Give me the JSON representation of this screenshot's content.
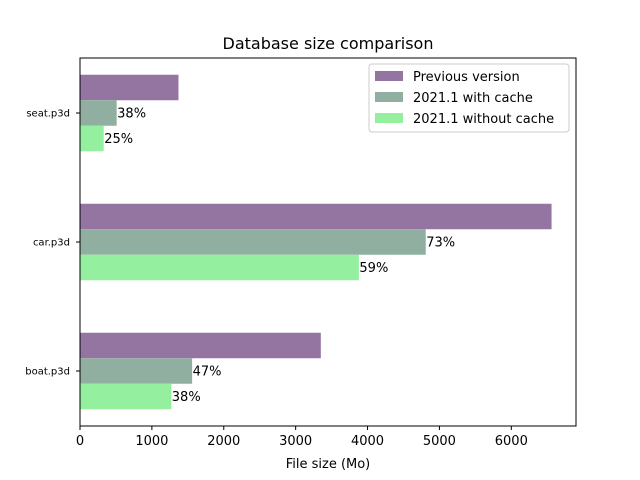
{
  "chart_data": {
    "type": "bar",
    "orientation": "horizontal",
    "title": "Database size comparison",
    "xlabel": "File size (Mo)",
    "ylabel": "",
    "xlim": [
      0,
      6900
    ],
    "xticks": [
      0,
      1000,
      2000,
      3000,
      4000,
      5000,
      6000
    ],
    "xtick_labels": [
      "0",
      "1000",
      "2000",
      "3000",
      "4000",
      "5000",
      "6000"
    ],
    "categories": [
      "boat.p3d",
      "car.p3d",
      "seat.p3d"
    ],
    "series": [
      {
        "name": "Previous version",
        "color": "#9474a1",
        "values": [
          3350,
          6560,
          1370
        ],
        "labels": [
          "",
          "",
          ""
        ]
      },
      {
        "name": "2021.1 with cache",
        "color": "#91afa1",
        "values": [
          1560,
          4810,
          510
        ],
        "labels": [
          "47%",
          "73%",
          "38%"
        ]
      },
      {
        "name": "2021.1 without cache",
        "color": "#94f09f",
        "values": [
          1270,
          3880,
          330
        ],
        "labels": [
          "38%",
          "59%",
          "25%"
        ]
      }
    ],
    "legend_position": "top-right",
    "grid": false
  }
}
